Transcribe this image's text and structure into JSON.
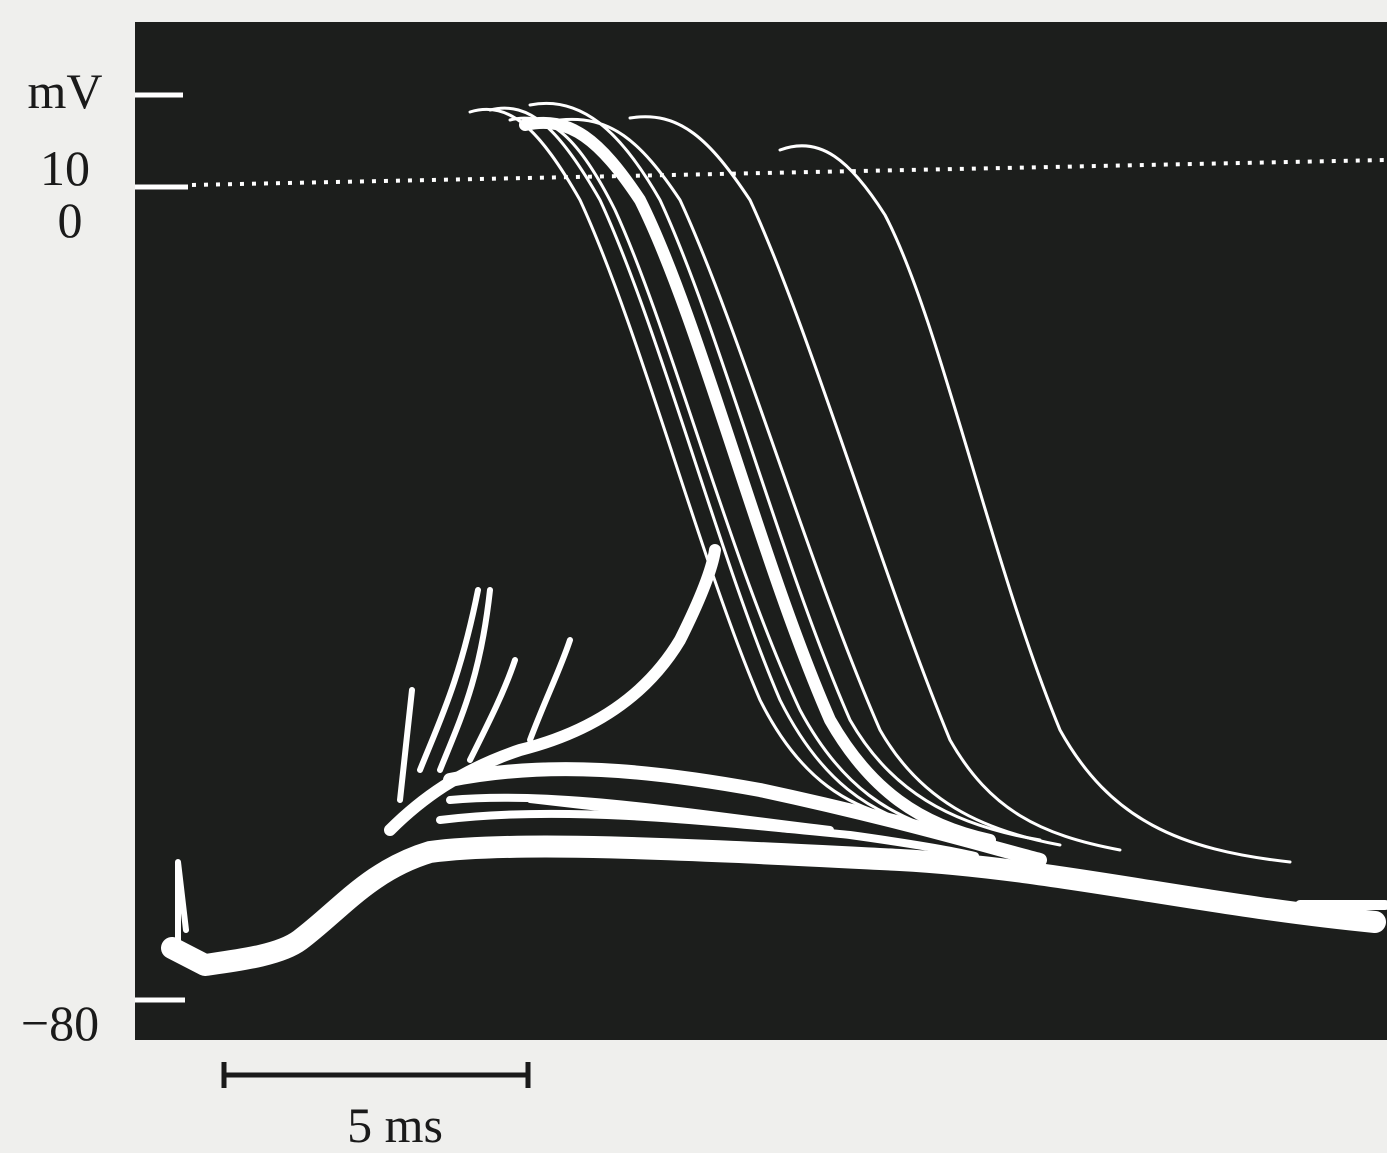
{
  "figure": {
    "y_labels": {
      "unit": "mV",
      "upper": "10",
      "zero": "0",
      "lower": "−80"
    },
    "scale_bar": "5 ms"
  }
}
